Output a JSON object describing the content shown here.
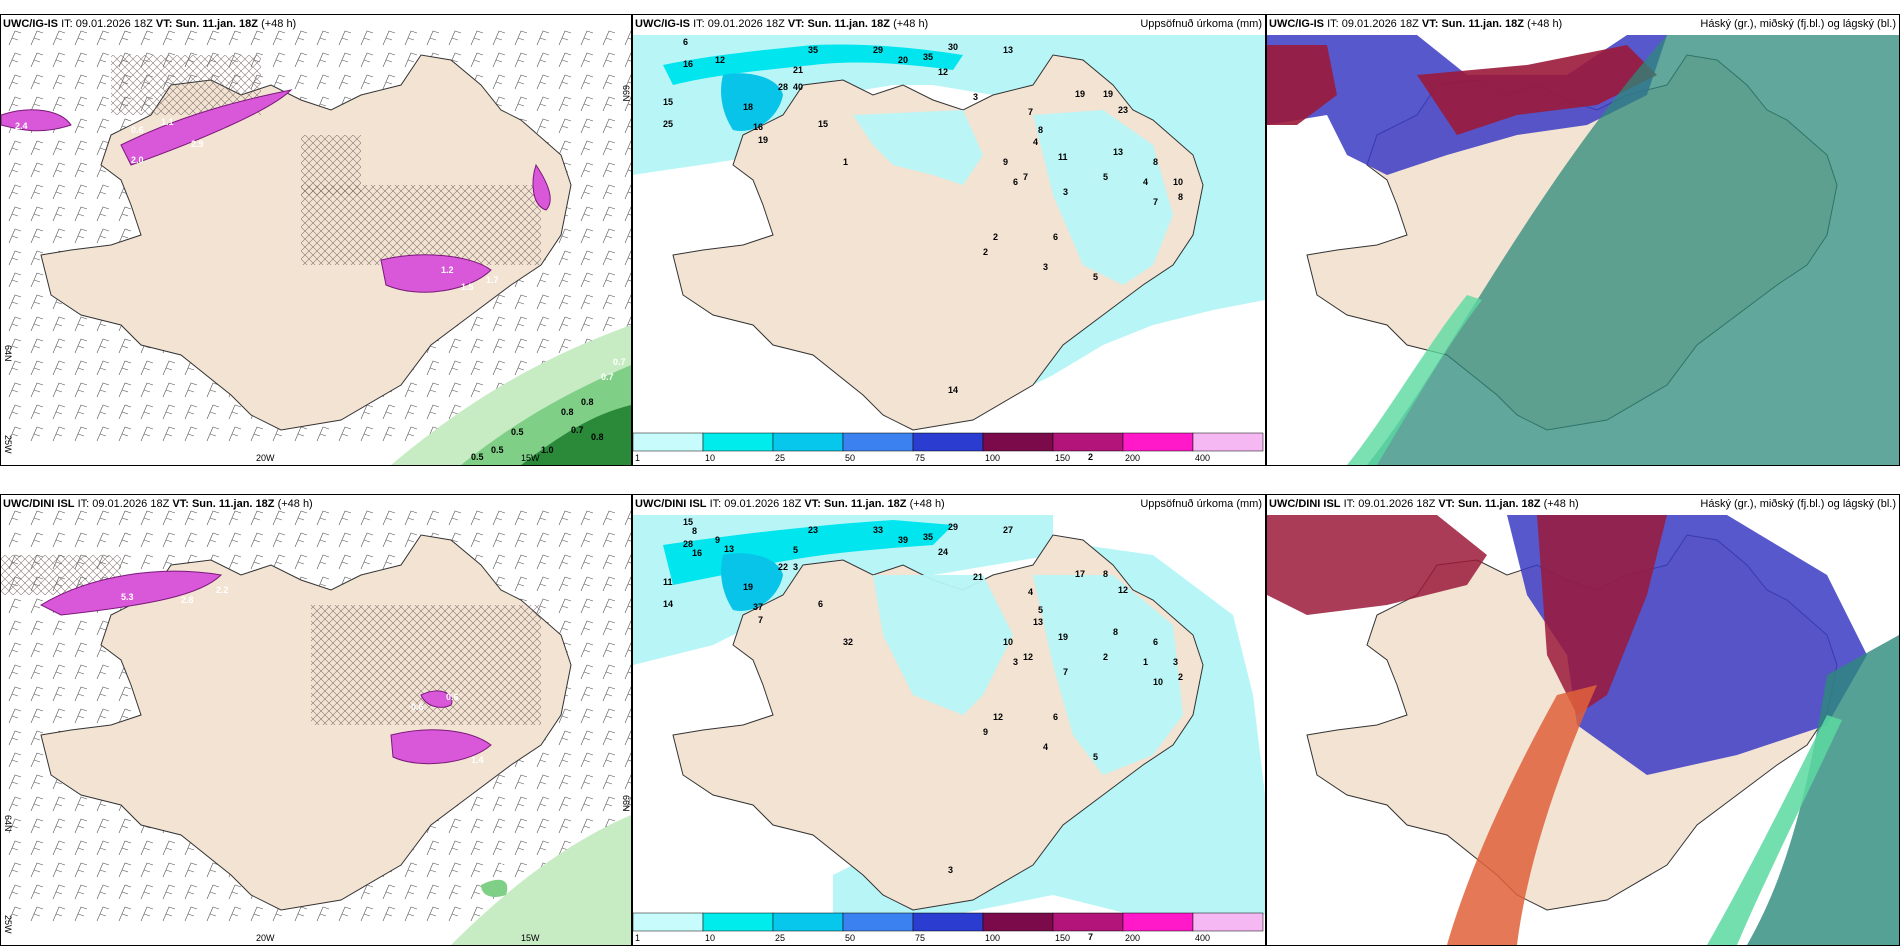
{
  "colors": {
    "land": "#f2e3d3",
    "sea": "#ffffff",
    "precip_light": "#b7f5f7",
    "precip_mid": "#00e5ee",
    "precip_strong": "#08c4e8",
    "pink": "#d957d9",
    "green_light": "#c7ecc4",
    "green_mid": "#7fcf86",
    "green_dark": "#2a8a3a",
    "cloud_high": "#2c8a7a",
    "cloud_mid": "#9b1a3a",
    "cloud_low": "#3b3bc4"
  },
  "colorbar": {
    "ticks": [
      "1",
      "10",
      "25",
      "50",
      "75",
      "100",
      "150",
      "200",
      "400"
    ],
    "colors": [
      "#c8fbfb",
      "#00ecec",
      "#08c7ec",
      "#3b82f0",
      "#2a3dd0",
      "#7a0a4a",
      "#b3147a",
      "#ff19c8",
      "#f6b8f2"
    ]
  },
  "rows": [
    {
      "model": "UWC/IG-IS",
      "it_label": "IT:",
      "it_value": "09.01.2026 18Z",
      "vt_label": "VT:",
      "vt_value": "Sun. 11.jan. 18Z",
      "lead": "(+48 h)",
      "precip_title": "Uppsöfnuð úrkoma (mm)",
      "cloud_title": "Háský (gr.), miðský (fj.bl.) og lágský (bl.)",
      "wind_labels": [
        "2.4",
        "2.0",
        "2.9",
        "1.1",
        "0.6",
        "1.2",
        "1.7",
        "1.5",
        "0.7",
        "0.7",
        "0.8",
        "0.8",
        "0.7",
        "0.8",
        "0.5",
        "0.5",
        "1.0",
        "0.5"
      ],
      "precip_labels": [
        "6",
        "12",
        "16",
        "15",
        "25",
        "35",
        "29",
        "30",
        "35",
        "20",
        "13",
        "12",
        "19",
        "19",
        "23",
        "18",
        "16",
        "28",
        "21",
        "40",
        "15",
        "19",
        "3",
        "2",
        "1",
        "7",
        "8",
        "4",
        "9",
        "13",
        "11",
        "7",
        "6",
        "5",
        "3",
        "8",
        "4",
        "7",
        "10",
        "2",
        "6",
        "3",
        "5",
        "14",
        "8",
        "2"
      ],
      "axis": {
        "lon1": "20W",
        "lon2": "15W",
        "lat1": "66N",
        "lat2": "64N",
        "lon3": "25W"
      }
    },
    {
      "model": "UWC/DINI ISL",
      "it_label": "IT:",
      "it_value": "09.01.2026 18Z",
      "vt_label": "VT:",
      "vt_value": "Sun. 11.jan. 18Z",
      "lead": "(+48 h)",
      "precip_title": "Uppsöfnuð úrkoma (mm)",
      "cloud_title": "Háský (gr.), miðský (fj.bl.) og lágský (bl.)",
      "wind_labels": [
        "5.3",
        "2.8",
        "2.2",
        "0.6",
        "0.6",
        "1.4",
        "0.6"
      ],
      "precip_labels": [
        "15",
        "9",
        "28",
        "11",
        "14",
        "23",
        "33",
        "29",
        "35",
        "39",
        "27",
        "24",
        "17",
        "8",
        "12",
        "19",
        "37",
        "22",
        "5",
        "3",
        "6",
        "7",
        "21",
        "12",
        "32",
        "4",
        "5",
        "13",
        "10",
        "8",
        "19",
        "12",
        "3",
        "2",
        "7",
        "6",
        "1",
        "10",
        "3",
        "9",
        "6",
        "4",
        "5",
        "3",
        "2",
        "7",
        "8",
        "13",
        "16"
      ],
      "axis": {
        "lon1": "20W",
        "lon2": "15W",
        "lat1": "66N",
        "lat2": "64N",
        "lon3": "25W"
      }
    }
  ]
}
